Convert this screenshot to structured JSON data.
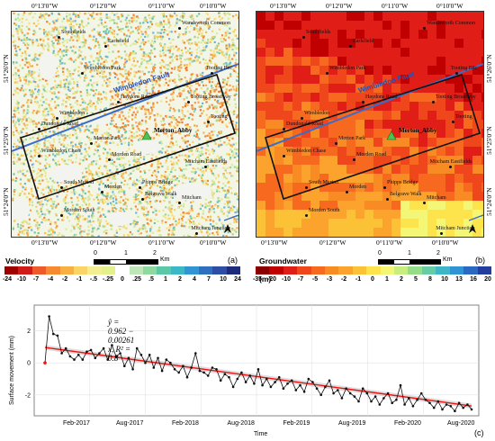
{
  "panel_a": {
    "coords_top": [
      "0°13'0\"W",
      "0°12'0\"W",
      "0°11'0\"W",
      "0°10'0\"W"
    ],
    "coords_bottom": [
      "0°13'0\"W",
      "0°12'0\"W",
      "0°11'0\"W",
      "0°10'0\"W"
    ],
    "coords_left": [
      "51°26'0\"N",
      "51°25'0\"N",
      "51°24'0\"N"
    ],
    "fault_label": "Wimbledon Fault",
    "merton_label": "Merton_Abby",
    "places": [
      "Southfields",
      "Earlsfield",
      "Wandsworth Common",
      "Wimbledon Park",
      "Tooting Bec",
      "Haydons Road",
      "Tooting Broadway",
      "Wimbledon",
      "Dundonald Road",
      "Tooting",
      "Merton Park",
      "Wimbledon Chase",
      "Morden Road",
      "Mitcham Eastfields",
      "South Merton",
      "Morden",
      "Phipps Bridge",
      "Belgrave Walk",
      "Mitcham",
      "Morden South",
      "St Helier",
      "Mitcham Junction"
    ],
    "legend_title": "Velocity (mm/year)",
    "scale": {
      "ticks": [
        "0",
        "1",
        "2"
      ],
      "unit": "Km"
    },
    "colorbar_ticks": [
      "-24",
      "-10",
      "-7",
      "-4",
      "-2",
      "-1",
      "-.5",
      "-.25",
      "0",
      ".25",
      ".5",
      "1",
      "2",
      "4",
      "7",
      "10",
      "24"
    ],
    "panel_label": "(a)"
  },
  "panel_b": {
    "coords_top": [
      "0°13'0\"W",
      "0°12'0\"W",
      "0°11'0\"W",
      "0°10'0\"W"
    ],
    "coords_bottom": [
      "0°13'0\"W",
      "0°12'0\"W",
      "0°11'0\"W",
      "0°10'0\"W"
    ],
    "coords_right": [
      "51°26'0\"N",
      "51°25'0\"N",
      "51°24'0\"N"
    ],
    "fault_label": "Wimbledon Fault",
    "merton_label": "Merton_Abby",
    "places": [
      "Southfields",
      "Earlsfield",
      "Wandsworth Common",
      "Wimbledon Park",
      "Tooting Bec",
      "Haydons Road",
      "Tooting Broadway",
      "Wimbledon",
      "Dundonald Road",
      "Tooting",
      "Merton Park",
      "Wimbledon Chase",
      "Morden Road",
      "Mitcham Eastfields",
      "South Merton",
      "Morden",
      "Phipps Bridge",
      "Belgrave Walk",
      "Mitcham",
      "Morden South",
      "St Helier",
      "Mitcham Junction"
    ],
    "legend_title": "Groundwater level change (m)",
    "scale": {
      "ticks": [
        "0",
        "1",
        "2"
      ],
      "unit": "Km"
    },
    "colorbar_ticks": [
      "-35",
      "-20",
      "-10",
      "-7",
      "-5",
      "-3",
      "-2",
      "-1",
      "0",
      "1",
      "2",
      "5",
      "8",
      "10",
      "13",
      "16",
      "20"
    ],
    "panel_label": "(b)"
  },
  "panel_c": {
    "equation": "ŷ = 0.962 − 0.00261 x, R² = 0.8",
    "ylabel": "Surface movement (mm)",
    "xlabel": "Time",
    "panel_label": "(c)",
    "chart_data": {
      "type": "line",
      "title": "",
      "xlabel": "Time",
      "ylabel": "Surface movement (mm)",
      "x_ticks": [
        "Feb-2017",
        "Aug-2017",
        "Feb-2018",
        "Aug-2018",
        "Feb-2019",
        "Aug-2019",
        "Feb-2020",
        "Aug-2020"
      ],
      "y_ticks": [
        "-2",
        "0",
        "2"
      ],
      "ylim": [
        -3.3,
        3.6
      ],
      "x_range": [
        "2016-10",
        "2021-01"
      ],
      "fit": {
        "intercept": 0.962,
        "slope": -0.00261,
        "r2": 0.8
      },
      "series": [
        {
          "values": [
            0,
            2.9,
            1.8,
            1.7,
            0.6,
            0.9,
            0.4,
            0.2,
            0.5,
            0.2,
            0.7,
            0.8,
            0.3,
            0.6,
            0.9,
            0.2,
            1.1,
            0.4,
            0.6,
            -0.2,
            0.3,
            -0.4,
            0.9,
            0.5,
            0.0,
            0.5,
            -0.3,
            0.3,
            -0.5,
            0.2,
            0.0,
            -0.4,
            -0.6,
            -0.2,
            -0.9,
            -0.3,
            0.6,
            -0.5,
            -0.6,
            -0.8,
            -0.3,
            -0.4,
            -1.1,
            -0.7,
            -0.9,
            -1.5,
            -1.0,
            -0.6,
            -1.2,
            -0.8,
            -1.3,
            -0.4,
            -1.4,
            -1.0,
            -1.5,
            -1.2,
            -0.9,
            -1.6,
            -1.3,
            -1.1,
            -1.7,
            -1.4,
            -1.8,
            -1.0,
            -1.2,
            -1.6,
            -2.0,
            -1.5,
            -1.1,
            -1.9,
            -1.7,
            -2.2,
            -1.6,
            -1.9,
            -2.1,
            -2.4,
            -1.6,
            -1.9,
            -2.4,
            -2.1,
            -2.6,
            -2.2,
            -1.9,
            -2.5,
            -2.3,
            -1.4,
            -2.6,
            -2.2,
            -2.7,
            -2.3,
            -1.9,
            -2.3,
            -2.5,
            -2.8,
            -2.4,
            -2.9,
            -2.6,
            -2.7,
            -3.0,
            -2.5,
            -2.8,
            -2.6,
            -2.9
          ]
        }
      ]
    }
  }
}
